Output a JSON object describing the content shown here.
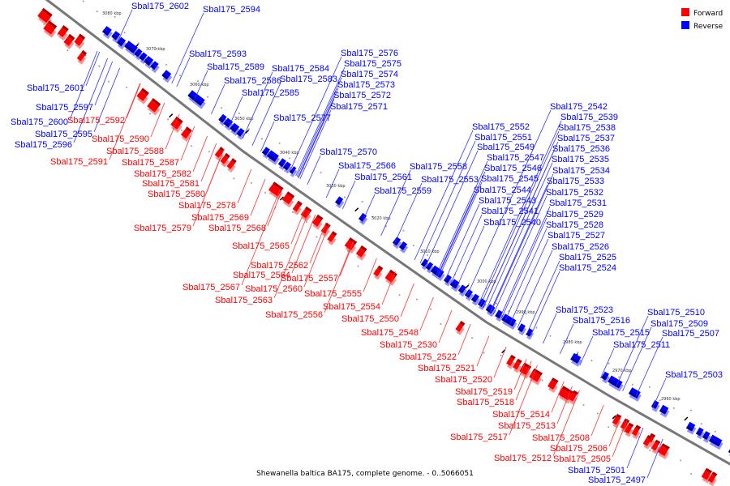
{
  "legend": {
    "forward": "Forward",
    "reverse": "Reverse",
    "forward_color": "#ff0000",
    "reverse_color": "#0000ff"
  },
  "ticks": [
    "3080 kbp",
    "3070 kbp",
    "3060 kbp",
    "3050 kbp",
    "3040 kbp",
    "3030 kbp",
    "3020 kbp",
    "3010 kbp",
    "3000 kbp",
    "2990 kbp",
    "2980 kbp",
    "2970 kbp",
    "2960 kbp"
  ],
  "caption": "Shewanella baltica BA175, complete genome. - 0..5066051",
  "labels": [
    {
      "text": "Sbal175_2602",
      "strand": "reverse"
    },
    {
      "text": "Sbal175_2594",
      "strand": "reverse"
    },
    {
      "text": "Sbal175_2593",
      "strand": "reverse"
    },
    {
      "text": "Sbal175_2589",
      "strand": "reverse"
    },
    {
      "text": "Sbal175_2586",
      "strand": "reverse"
    },
    {
      "text": "Sbal175_2585",
      "strand": "reverse"
    },
    {
      "text": "Sbal175_2584",
      "strand": "reverse"
    },
    {
      "text": "Sbal175_2583",
      "strand": "reverse"
    },
    {
      "text": "Sbal175_2576",
      "strand": "reverse"
    },
    {
      "text": "Sbal175_2575",
      "strand": "reverse"
    },
    {
      "text": "Sbal175_2574",
      "strand": "reverse"
    },
    {
      "text": "Sbal175_2573",
      "strand": "reverse"
    },
    {
      "text": "Sbal175_2572",
      "strand": "reverse"
    },
    {
      "text": "Sbal175_2571",
      "strand": "reverse"
    },
    {
      "text": "Sbal175_2577",
      "strand": "reverse"
    },
    {
      "text": "Sbal175_2570",
      "strand": "reverse"
    },
    {
      "text": "Sbal175_2566",
      "strand": "reverse"
    },
    {
      "text": "Sbal175_2561",
      "strand": "reverse"
    },
    {
      "text": "Sbal175_2559",
      "strand": "reverse"
    },
    {
      "text": "Sbal175_2558",
      "strand": "reverse"
    },
    {
      "text": "Sbal175_2553",
      "strand": "reverse"
    },
    {
      "text": "Sbal175_2552",
      "strand": "reverse"
    },
    {
      "text": "Sbal175_2551",
      "strand": "reverse"
    },
    {
      "text": "Sbal175_2549",
      "strand": "reverse"
    },
    {
      "text": "Sbal175_2547",
      "strand": "reverse"
    },
    {
      "text": "Sbal175_2546",
      "strand": "reverse"
    },
    {
      "text": "Sbal175_2545",
      "strand": "reverse"
    },
    {
      "text": "Sbal175_2544",
      "strand": "reverse"
    },
    {
      "text": "Sbal175_2543",
      "strand": "reverse"
    },
    {
      "text": "Sbal175_2541",
      "strand": "reverse"
    },
    {
      "text": "Sbal175_2540",
      "strand": "reverse"
    },
    {
      "text": "Sbal175_2542",
      "strand": "reverse"
    },
    {
      "text": "Sbal175_2539",
      "strand": "reverse"
    },
    {
      "text": "Sbal175_2538",
      "strand": "reverse"
    },
    {
      "text": "Sbal175_2537",
      "strand": "reverse"
    },
    {
      "text": "Sbal175_2536",
      "strand": "reverse"
    },
    {
      "text": "Sbal175_2535",
      "strand": "reverse"
    },
    {
      "text": "Sbal175_2534",
      "strand": "reverse"
    },
    {
      "text": "Sbal175_2533",
      "strand": "reverse"
    },
    {
      "text": "Sbal175_2532",
      "strand": "reverse"
    },
    {
      "text": "Sbal175_2531",
      "strand": "reverse"
    },
    {
      "text": "Sbal175_2529",
      "strand": "reverse"
    },
    {
      "text": "Sbal175_2528",
      "strand": "reverse"
    },
    {
      "text": "Sbal175_2527",
      "strand": "reverse"
    },
    {
      "text": "Sbal175_2526",
      "strand": "reverse"
    },
    {
      "text": "Sbal175_2525",
      "strand": "reverse"
    },
    {
      "text": "Sbal175_2524",
      "strand": "reverse"
    },
    {
      "text": "Sbal175_2523",
      "strand": "reverse"
    },
    {
      "text": "Sbal175_2516",
      "strand": "reverse"
    },
    {
      "text": "Sbal175_2515",
      "strand": "reverse"
    },
    {
      "text": "Sbal175_2511",
      "strand": "reverse"
    },
    {
      "text": "Sbal175_2510",
      "strand": "reverse"
    },
    {
      "text": "Sbal175_2509",
      "strand": "reverse"
    },
    {
      "text": "Sbal175_2507",
      "strand": "reverse"
    },
    {
      "text": "Sbal175_2503",
      "strand": "reverse"
    },
    {
      "text": "Sbal175_2501",
      "strand": "reverse"
    },
    {
      "text": "Sbal175_2497",
      "strand": "reverse"
    },
    {
      "text": "Sbal175_2601",
      "strand": "reverse"
    },
    {
      "text": "Sbal175_2597",
      "strand": "reverse"
    },
    {
      "text": "Sbal175_2600",
      "strand": "reverse"
    },
    {
      "text": "Sbal175_2595",
      "strand": "reverse"
    },
    {
      "text": "Sbal175_2596",
      "strand": "reverse"
    },
    {
      "text": "Sbal175_2592",
      "strand": "forward"
    },
    {
      "text": "Sbal175_2590",
      "strand": "forward"
    },
    {
      "text": "Sbal175_2588",
      "strand": "forward"
    },
    {
      "text": "Sbal175_2591",
      "strand": "forward"
    },
    {
      "text": "Sbal175_2587",
      "strand": "forward"
    },
    {
      "text": "Sbal175_2582",
      "strand": "forward"
    },
    {
      "text": "Sbal175_2581",
      "strand": "forward"
    },
    {
      "text": "Sbal175_2580",
      "strand": "forward"
    },
    {
      "text": "Sbal175_2578",
      "strand": "forward"
    },
    {
      "text": "Sbal175_2569",
      "strand": "forward"
    },
    {
      "text": "Sbal175_2579",
      "strand": "forward"
    },
    {
      "text": "Sbal175_2568",
      "strand": "forward"
    },
    {
      "text": "Sbal175_2565",
      "strand": "forward"
    },
    {
      "text": "Sbal175_2562",
      "strand": "forward"
    },
    {
      "text": "Sbal175_2564",
      "strand": "forward"
    },
    {
      "text": "Sbal175_2557",
      "strand": "forward"
    },
    {
      "text": "Sbal175_2567",
      "strand": "forward"
    },
    {
      "text": "Sbal175_2560",
      "strand": "forward"
    },
    {
      "text": "Sbal175_2563",
      "strand": "forward"
    },
    {
      "text": "Sbal175_2555",
      "strand": "forward"
    },
    {
      "text": "Sbal175_2554",
      "strand": "forward"
    },
    {
      "text": "Sbal175_2556",
      "strand": "forward"
    },
    {
      "text": "Sbal175_2550",
      "strand": "forward"
    },
    {
      "text": "Sbal175_2548",
      "strand": "forward"
    },
    {
      "text": "Sbal175_2530",
      "strand": "forward"
    },
    {
      "text": "Sbal175_2522",
      "strand": "forward"
    },
    {
      "text": "Sbal175_2521",
      "strand": "forward"
    },
    {
      "text": "Sbal175_2520",
      "strand": "forward"
    },
    {
      "text": "Sbal175_2519",
      "strand": "forward"
    },
    {
      "text": "Sbal175_2518",
      "strand": "forward"
    },
    {
      "text": "Sbal175_2514",
      "strand": "forward"
    },
    {
      "text": "Sbal175_2513",
      "strand": "forward"
    },
    {
      "text": "Sbal175_2517",
      "strand": "forward"
    },
    {
      "text": "Sbal175_2508",
      "strand": "forward"
    },
    {
      "text": "Sbal175_2506",
      "strand": "forward"
    },
    {
      "text": "Sbal175_2512",
      "strand": "forward"
    },
    {
      "text": "Sbal175_2505",
      "strand": "forward"
    }
  ]
}
